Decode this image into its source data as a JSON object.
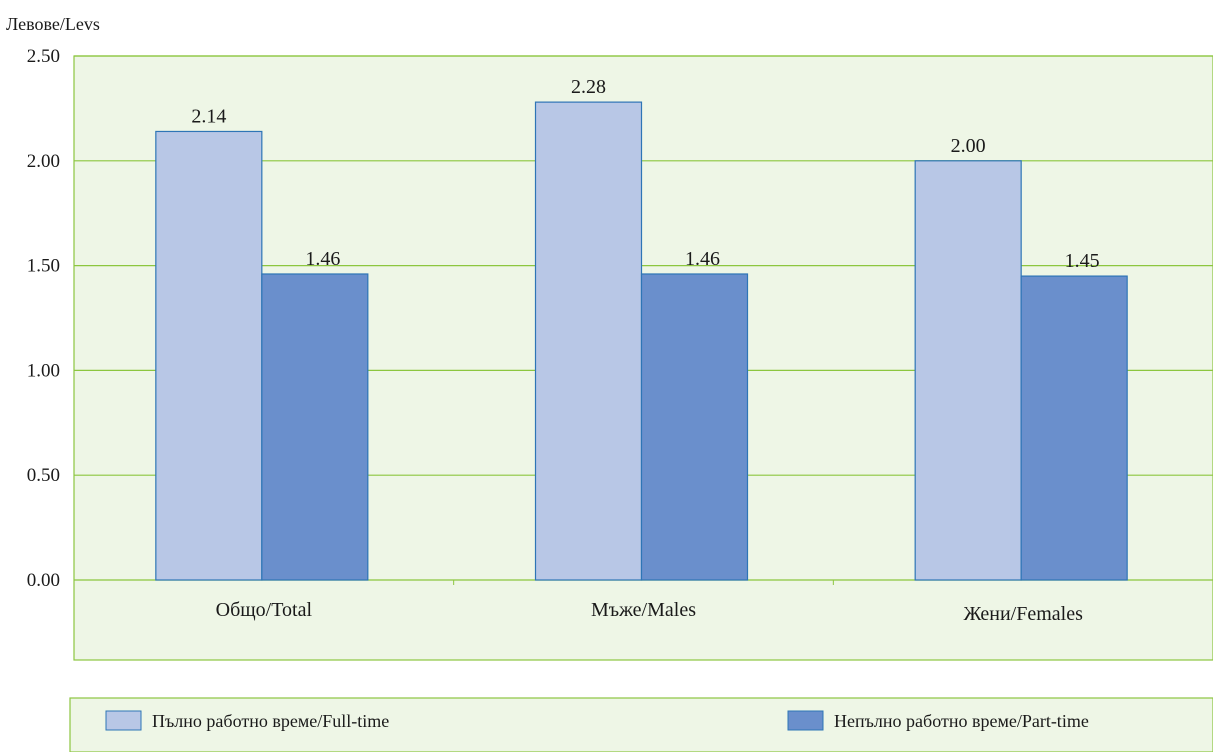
{
  "chart_data": {
    "type": "bar",
    "ylabel": "Левове/Levs",
    "ylim": [
      0,
      2.5
    ],
    "yticks": [
      "0.00",
      "0.50",
      "1.00",
      "1.50",
      "2.00",
      "2.50"
    ],
    "categories": [
      "Общо/Total",
      "Мъже/Males",
      "Жени/Females"
    ],
    "series": [
      {
        "name": "Пълно работно време/Full-time",
        "values": [
          2.14,
          2.28,
          2.0
        ],
        "labels": [
          "2.14",
          "2.28",
          "2.00"
        ]
      },
      {
        "name": "Непълно работно време/Part-time",
        "values": [
          1.46,
          1.46,
          1.45
        ],
        "labels": [
          "1.46",
          "1.46",
          "1.45"
        ]
      }
    ],
    "grid": true,
    "legend": "bottom",
    "colors": {
      "plot_background": "#eef6e6",
      "gridline": "#8cc63f",
      "full_time": "#b8c7e6",
      "part_time": "#6a8fcc",
      "bar_border": "#2e75b6"
    }
  }
}
